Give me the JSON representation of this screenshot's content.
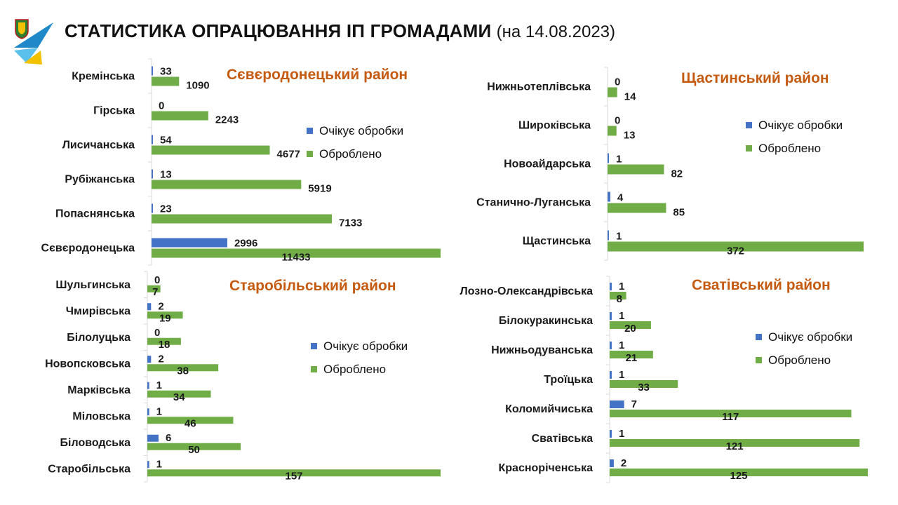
{
  "header": {
    "title": "СТАТИСТИКА ОПРАЦЮВАННЯ ІП ГРОМАДАМИ",
    "date": "(на 14.08.2023)"
  },
  "colors": {
    "pending": "#4472C4",
    "processed": "#70AD47",
    "region_title": "#C55A11",
    "axis": "#D9D9D9",
    "logo_blue": "#1E88C9",
    "logo_yellow": "#F2C200",
    "logo_green": "#2E7D32"
  },
  "legend": {
    "pending": "Очікує обробки",
    "processed": "Оброблено"
  },
  "chart_data": [
    {
      "type": "bar",
      "orientation": "horizontal",
      "title": "Сєвєродонецький район",
      "categories": [
        "Кремінська",
        "Гірська",
        "Лисичанська",
        "Рубіжанська",
        "Попаснянська",
        "Сєвєродонецька"
      ],
      "series": [
        {
          "name": "Очікує обробки",
          "values": [
            33,
            0,
            54,
            13,
            23,
            2996
          ]
        },
        {
          "name": "Оброблено",
          "values": [
            1090,
            2243,
            4677,
            5919,
            7133,
            11433
          ]
        }
      ],
      "xlim": [
        0,
        11433
      ],
      "legend_position": "right"
    },
    {
      "type": "bar",
      "orientation": "horizontal",
      "title": "Щастинський район",
      "categories": [
        "Нижньотеплівська",
        "Широківська",
        "Новоайдарська",
        "Станично-Луганська",
        "Щастинська"
      ],
      "series": [
        {
          "name": "Очікує обробки",
          "values": [
            0,
            0,
            1,
            4,
            1
          ]
        },
        {
          "name": "Оброблено",
          "values": [
            14,
            13,
            82,
            85,
            372
          ]
        }
      ],
      "xlim": [
        0,
        372
      ],
      "legend_position": "right"
    },
    {
      "type": "bar",
      "orientation": "horizontal",
      "title": "Старобільський район",
      "categories": [
        "Шульгинська",
        "Чмирівська",
        "Білолуцька",
        "Новопсковська",
        "Марківська",
        "Міловська",
        "Біловодська",
        "Старобільська"
      ],
      "series": [
        {
          "name": "Очікує обробки",
          "values": [
            0,
            2,
            0,
            2,
            1,
            1,
            6,
            1
          ]
        },
        {
          "name": "Оброблено",
          "values": [
            7,
            19,
            18,
            38,
            34,
            46,
            50,
            157
          ]
        }
      ],
      "xlim": [
        0,
        157
      ],
      "legend_position": "right"
    },
    {
      "type": "bar",
      "orientation": "horizontal",
      "title": "Сватівський район",
      "categories": [
        "Лозно-Олександрівська",
        "Білокуракинська",
        "Нижньодуванська",
        "Троїцька",
        "Коломийчиська",
        "Сватівська",
        "Красноріченська"
      ],
      "series": [
        {
          "name": "Очікує обробки",
          "values": [
            1,
            1,
            1,
            1,
            7,
            1,
            2
          ]
        },
        {
          "name": "Оброблено",
          "values": [
            8,
            20,
            21,
            33,
            117,
            121,
            125
          ]
        }
      ],
      "xlim": [
        0,
        125
      ],
      "legend_position": "right"
    }
  ]
}
